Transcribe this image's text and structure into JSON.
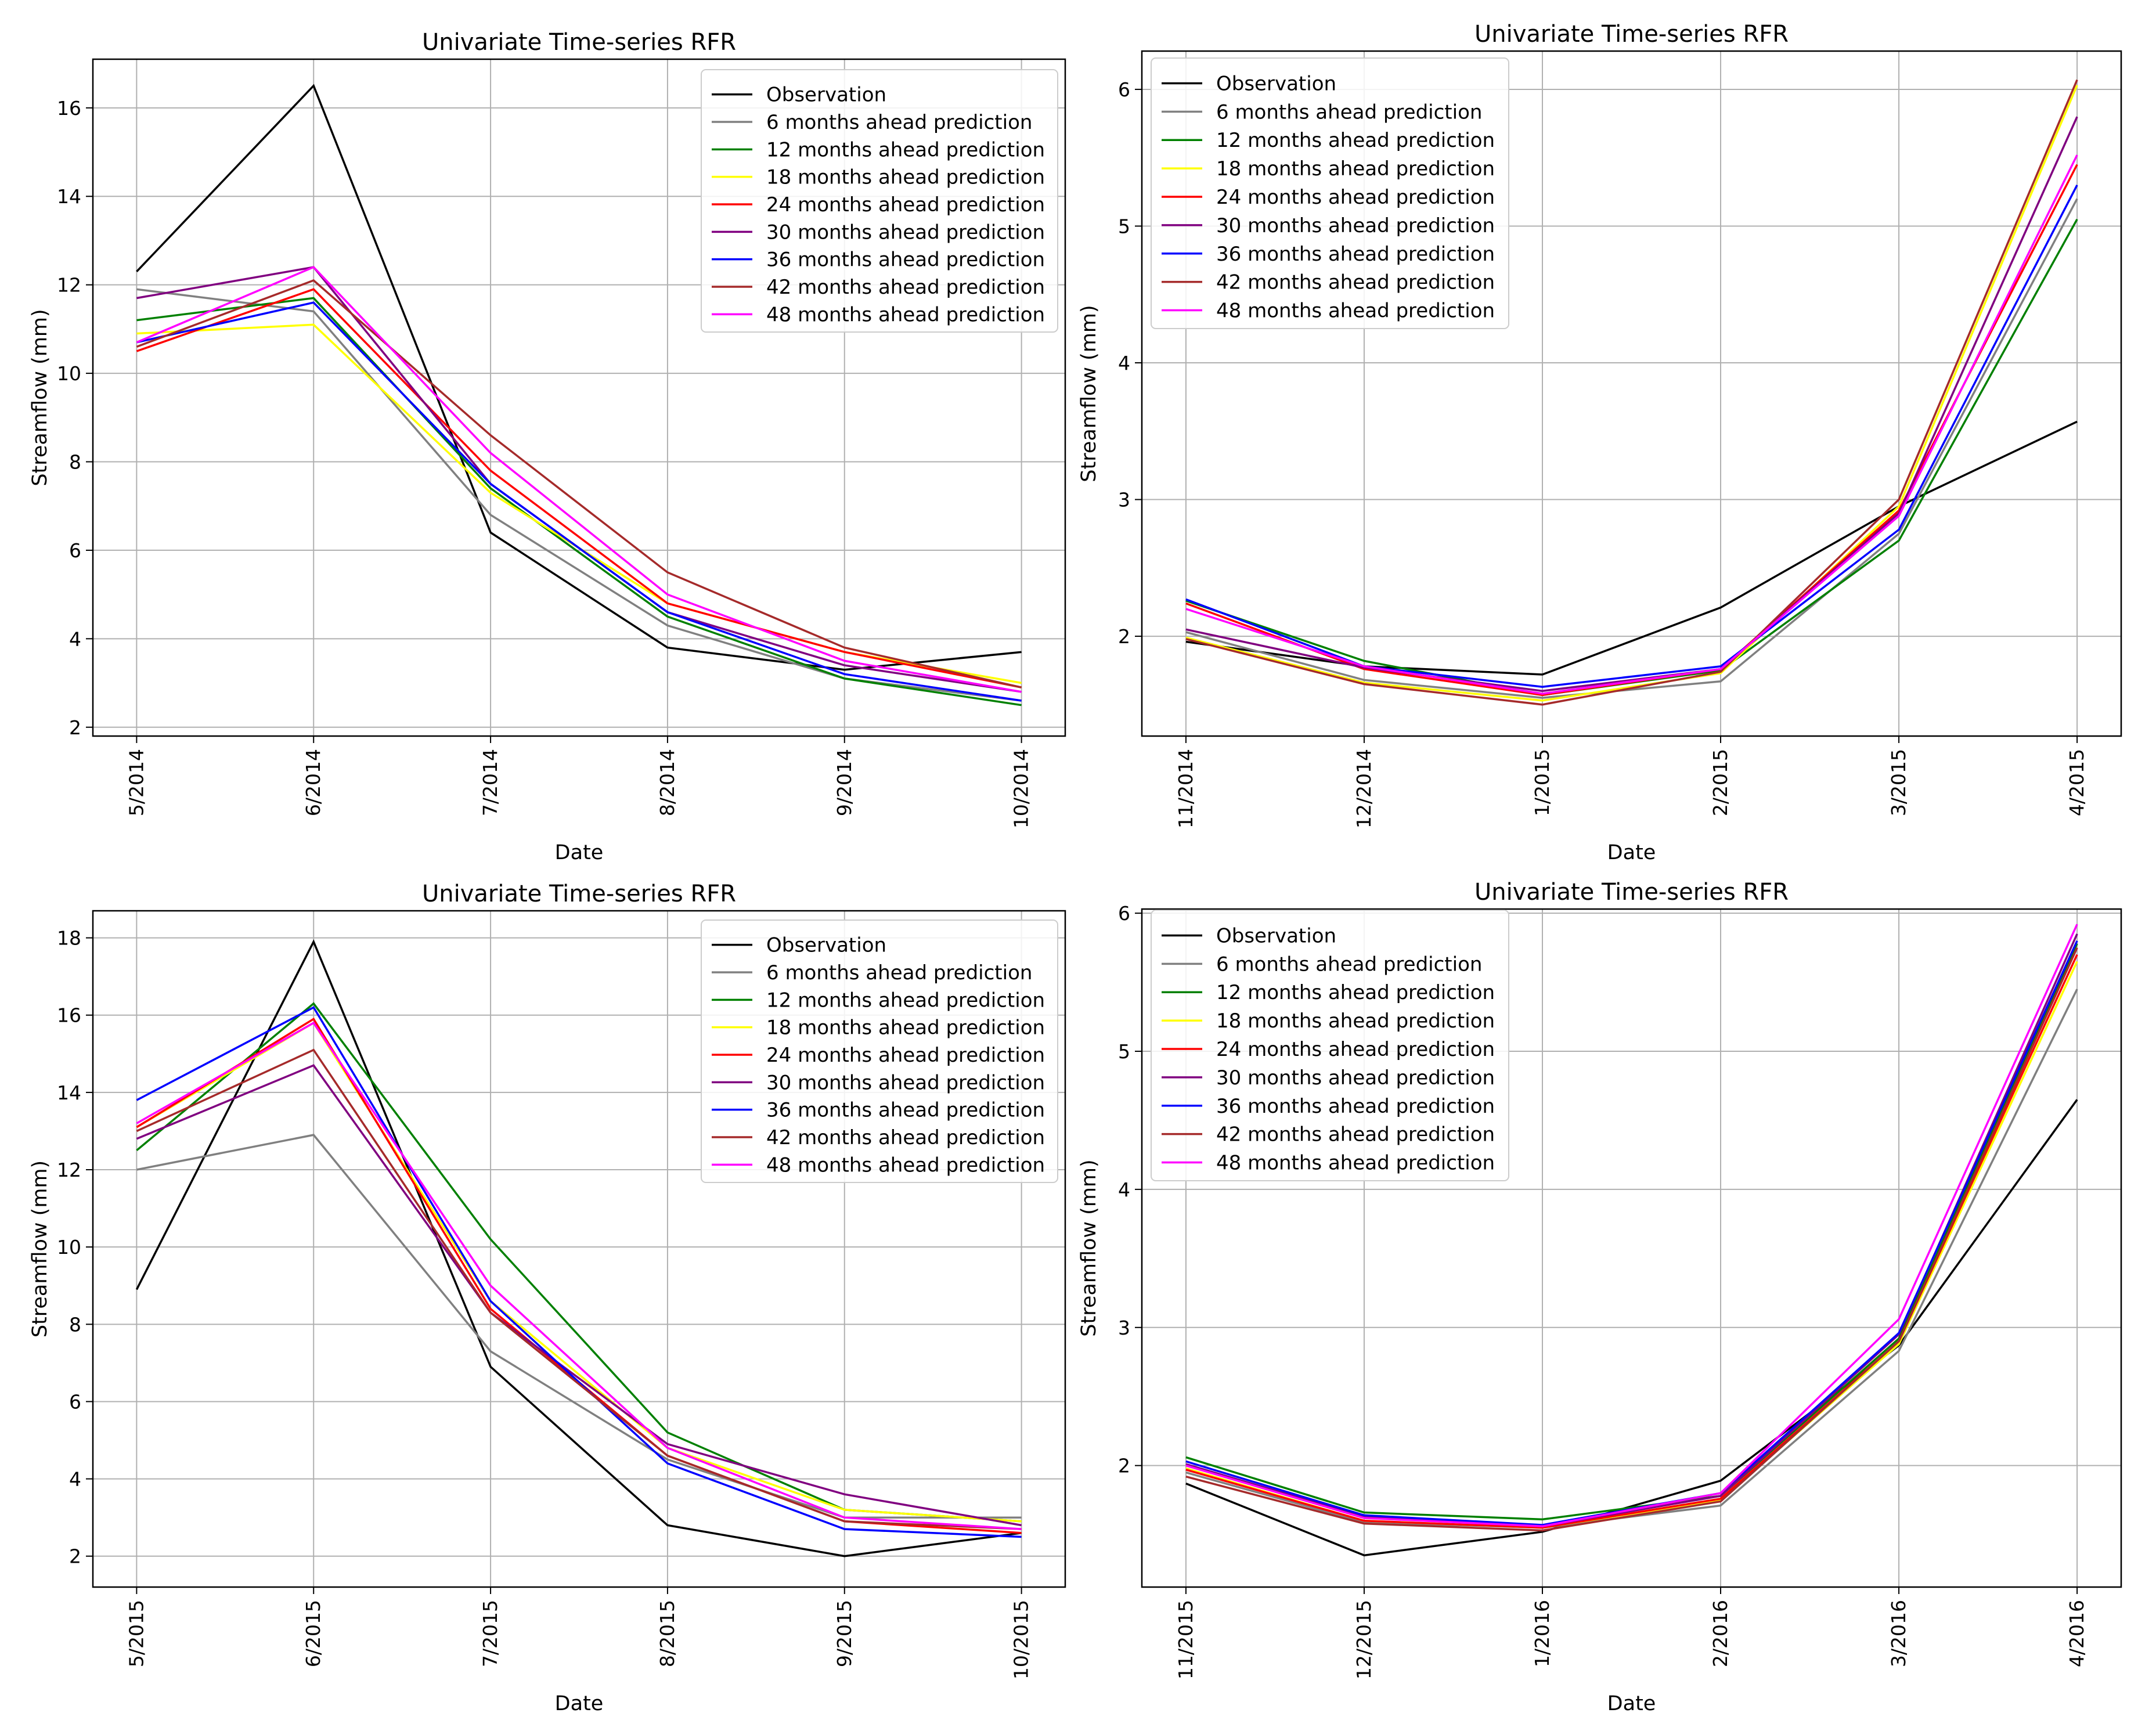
{
  "colors": {
    "Observation": "#000000",
    "6 months ahead prediction": "#808080",
    "12 months ahead prediction": "#008000",
    "18 months ahead prediction": "#ffff00",
    "24 months ahead prediction": "#ff0000",
    "30 months ahead prediction": "#800080",
    "36 months ahead prediction": "#0000ff",
    "42 months ahead prediction": "#a52a2a",
    "48 months ahead prediction": "#ff00ff",
    "grid": "#b0b0b0"
  },
  "chart_data": [
    {
      "type": "line",
      "title": "Univariate Time-series RFR",
      "xlabel": "Date",
      "ylabel": "Streamflow (mm)",
      "grid": true,
      "legend": "top-right",
      "categories": [
        "5/2014",
        "6/2014",
        "7/2014",
        "8/2014",
        "9/2014",
        "10/2014"
      ],
      "ylim": [
        1.8,
        17.1
      ],
      "yticks": [
        2,
        4,
        6,
        8,
        10,
        12,
        14,
        16
      ],
      "series": [
        {
          "name": "Observation",
          "values": [
            12.3,
            16.5,
            6.4,
            3.8,
            3.3,
            3.7
          ]
        },
        {
          "name": "6 months ahead prediction",
          "values": [
            11.9,
            11.4,
            6.8,
            4.3,
            3.1,
            2.6
          ]
        },
        {
          "name": "12 months ahead prediction",
          "values": [
            11.2,
            11.7,
            7.4,
            4.5,
            3.1,
            2.5
          ]
        },
        {
          "name": "18 months ahead prediction",
          "values": [
            10.9,
            11.1,
            7.3,
            4.8,
            3.7,
            3.0
          ]
        },
        {
          "name": "24 months ahead prediction",
          "values": [
            10.5,
            11.9,
            7.8,
            4.8,
            3.7,
            2.9
          ]
        },
        {
          "name": "30 months ahead prediction",
          "values": [
            11.7,
            12.4,
            7.5,
            4.6,
            3.4,
            2.8
          ]
        },
        {
          "name": "36 months ahead prediction",
          "values": [
            10.7,
            11.6,
            7.5,
            4.6,
            3.2,
            2.6
          ]
        },
        {
          "name": "42 months ahead prediction",
          "values": [
            10.6,
            12.1,
            8.6,
            5.5,
            3.8,
            2.9
          ]
        },
        {
          "name": "48 months ahead prediction",
          "values": [
            10.7,
            12.4,
            8.2,
            5.0,
            3.5,
            2.8
          ]
        }
      ]
    },
    {
      "type": "line",
      "title": "Univariate Time-series RFR",
      "xlabel": "Date",
      "ylabel": "Streamflow (mm)",
      "grid": true,
      "legend": "top-left",
      "categories": [
        "11/2014",
        "12/2014",
        "1/2015",
        "2/2015",
        "3/2015",
        "4/2015"
      ],
      "ylim": [
        1.27,
        6.28
      ],
      "yticks": [
        2,
        3,
        4,
        5,
        6
      ],
      "series": [
        {
          "name": "Observation",
          "values": [
            1.96,
            1.78,
            1.72,
            2.21,
            2.95,
            3.57
          ]
        },
        {
          "name": "6 months ahead prediction",
          "values": [
            2.03,
            1.68,
            1.55,
            1.67,
            2.75,
            5.2
          ]
        },
        {
          "name": "12 months ahead prediction",
          "values": [
            2.26,
            1.82,
            1.57,
            1.75,
            2.7,
            5.05
          ]
        },
        {
          "name": "18 months ahead prediction",
          "values": [
            1.99,
            1.66,
            1.53,
            1.73,
            2.95,
            6.03
          ]
        },
        {
          "name": "24 months ahead prediction",
          "values": [
            2.24,
            1.76,
            1.57,
            1.76,
            2.92,
            5.45
          ]
        },
        {
          "name": "30 months ahead prediction",
          "values": [
            2.05,
            1.77,
            1.6,
            1.76,
            2.9,
            5.8
          ]
        },
        {
          "name": "36 months ahead prediction",
          "values": [
            2.27,
            1.78,
            1.63,
            1.78,
            2.78,
            5.3
          ]
        },
        {
          "name": "42 months ahead prediction",
          "values": [
            1.98,
            1.65,
            1.5,
            1.74,
            3.0,
            6.07
          ]
        },
        {
          "name": "48 months ahead prediction",
          "values": [
            2.2,
            1.78,
            1.58,
            1.76,
            2.88,
            5.52
          ]
        }
      ]
    },
    {
      "type": "line",
      "title": "Univariate Time-series RFR",
      "xlabel": "Date",
      "ylabel": "Streamflow (mm)",
      "grid": true,
      "legend": "top-right",
      "categories": [
        "5/2015",
        "6/2015",
        "7/2015",
        "8/2015",
        "9/2015",
        "10/2015"
      ],
      "ylim": [
        1.2,
        18.7
      ],
      "yticks": [
        2,
        4,
        6,
        8,
        10,
        12,
        14,
        16,
        18
      ],
      "series": [
        {
          "name": "Observation",
          "values": [
            8.9,
            17.9,
            6.9,
            2.8,
            2.0,
            2.6
          ]
        },
        {
          "name": "6 months ahead prediction",
          "values": [
            12.0,
            12.9,
            7.3,
            4.5,
            3.0,
            3.0
          ]
        },
        {
          "name": "12 months ahead prediction",
          "values": [
            12.5,
            16.3,
            10.2,
            5.2,
            3.2,
            2.9
          ]
        },
        {
          "name": "18 months ahead prediction",
          "values": [
            13.1,
            15.8,
            8.6,
            4.8,
            3.2,
            2.9
          ]
        },
        {
          "name": "24 months ahead prediction",
          "values": [
            13.1,
            15.9,
            8.4,
            4.6,
            2.9,
            2.6
          ]
        },
        {
          "name": "30 months ahead prediction",
          "values": [
            12.8,
            14.7,
            8.3,
            4.9,
            3.6,
            2.8
          ]
        },
        {
          "name": "36 months ahead prediction",
          "values": [
            13.8,
            16.2,
            8.6,
            4.4,
            2.7,
            2.5
          ]
        },
        {
          "name": "42 months ahead prediction",
          "values": [
            13.0,
            15.1,
            8.3,
            4.6,
            2.9,
            2.7
          ]
        },
        {
          "name": "48 months ahead prediction",
          "values": [
            13.2,
            15.8,
            9.0,
            4.8,
            3.0,
            2.7
          ]
        }
      ]
    },
    {
      "type": "line",
      "title": "Univariate Time-series RFR",
      "xlabel": "Date",
      "ylabel": "Streamflow (mm)",
      "grid": true,
      "legend": "top-left",
      "categories": [
        "11/2015",
        "12/2015",
        "1/2016",
        "2/2016",
        "3/2016",
        "4/2016"
      ],
      "ylim": [
        1.12,
        6.03
      ],
      "yticks": [
        2,
        3,
        4,
        5,
        6
      ],
      "series": [
        {
          "name": "Observation",
          "values": [
            1.87,
            1.35,
            1.52,
            1.89,
            2.87,
            4.65
          ]
        },
        {
          "name": "6 months ahead prediction",
          "values": [
            1.95,
            1.59,
            1.55,
            1.71,
            2.83,
            5.45
          ]
        },
        {
          "name": "12 months ahead prediction",
          "values": [
            2.06,
            1.66,
            1.61,
            1.78,
            2.92,
            5.78
          ]
        },
        {
          "name": "18 months ahead prediction",
          "values": [
            1.98,
            1.6,
            1.55,
            1.75,
            2.88,
            5.65
          ]
        },
        {
          "name": "24 months ahead prediction",
          "values": [
            1.97,
            1.6,
            1.55,
            1.76,
            2.9,
            5.7
          ]
        },
        {
          "name": "30 months ahead prediction",
          "values": [
            2.01,
            1.63,
            1.56,
            1.78,
            2.95,
            5.85
          ]
        },
        {
          "name": "36 months ahead prediction",
          "values": [
            2.03,
            1.64,
            1.57,
            1.8,
            2.96,
            5.8
          ]
        },
        {
          "name": "42 months ahead prediction",
          "values": [
            1.92,
            1.58,
            1.53,
            1.74,
            2.9,
            5.75
          ]
        },
        {
          "name": "48 months ahead prediction",
          "values": [
            2.0,
            1.62,
            1.56,
            1.8,
            3.06,
            5.92
          ]
        }
      ]
    }
  ]
}
